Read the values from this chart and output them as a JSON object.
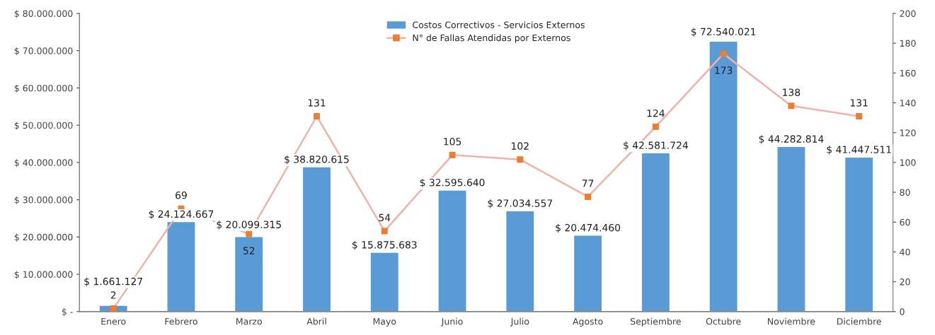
{
  "chart_data": {
    "type": "bar",
    "categories": [
      "Enero",
      "Febrero",
      "Marzo",
      "Abril",
      "Mayo",
      "Junio",
      "Julio",
      "Agosto",
      "Septiembre",
      "Octubre",
      "Noviembre",
      "Diciembre"
    ],
    "series": [
      {
        "name": "Costos Correctivos - Servicios Externos",
        "color": "#5b9bd5",
        "values": [
          1661127,
          24124667,
          20099315,
          38820615,
          15875683,
          32595640,
          27034557,
          20474460,
          42581724,
          72540021,
          44282814,
          41447511
        ],
        "value_labels": [
          "$ 1.661.127",
          "$ 24.124.667",
          "$ 20.099.315",
          "$ 38.820.615",
          "$ 15.875.683",
          "$ 32.595.640",
          "$ 27.034.557",
          "$ 20.474.460",
          "$ 42.581.724",
          "$ 72.540.021",
          "$ 44.282.814",
          "$ 41.447.511"
        ]
      },
      {
        "name": "N° de Fallas Atendidas por Externos",
        "type": "line",
        "axis": "y2",
        "color": "#f4b1a9",
        "colors": [
          "#ed7d31",
          "#ed7d31",
          "#ed7d31",
          "#ed7d31",
          "#ed7d31",
          "#ed7d31",
          "#ed7d31",
          "#ed7d31",
          "#ed7d31",
          "#ed7d31",
          "#ed7d31",
          "#ed7d31"
        ],
        "marker": "square",
        "values": [
          2,
          69,
          52,
          131,
          54,
          105,
          102,
          77,
          124,
          173,
          138,
          131
        ],
        "value_labels": [
          "2",
          "69",
          "52",
          "131",
          "54",
          "105",
          "102",
          "77",
          "124",
          "173",
          "138",
          "131"
        ]
      }
    ],
    "ylim": [
      0,
      80000000
    ],
    "yticks": [
      {
        "value": 0,
        "label": "$ -"
      },
      {
        "value": 10000000,
        "label": "$ 10.000.000"
      },
      {
        "value": 20000000,
        "label": "$ 20.000.000"
      },
      {
        "value": 30000000,
        "label": "$ 30.000.000"
      },
      {
        "value": 40000000,
        "label": "$ 40.000.000"
      },
      {
        "value": 50000000,
        "label": "$ 50.000.000"
      },
      {
        "value": 60000000,
        "label": "$ 60.000.000"
      },
      {
        "value": 70000000,
        "label": "$ 70.000.000"
      },
      {
        "value": 80000000,
        "label": "$ 80.000.000"
      }
    ],
    "y2lim": [
      0,
      200
    ],
    "y2ticks": [
      0,
      20,
      40,
      60,
      80,
      100,
      120,
      140,
      160,
      180,
      200
    ],
    "grid": false,
    "legend": "top"
  }
}
